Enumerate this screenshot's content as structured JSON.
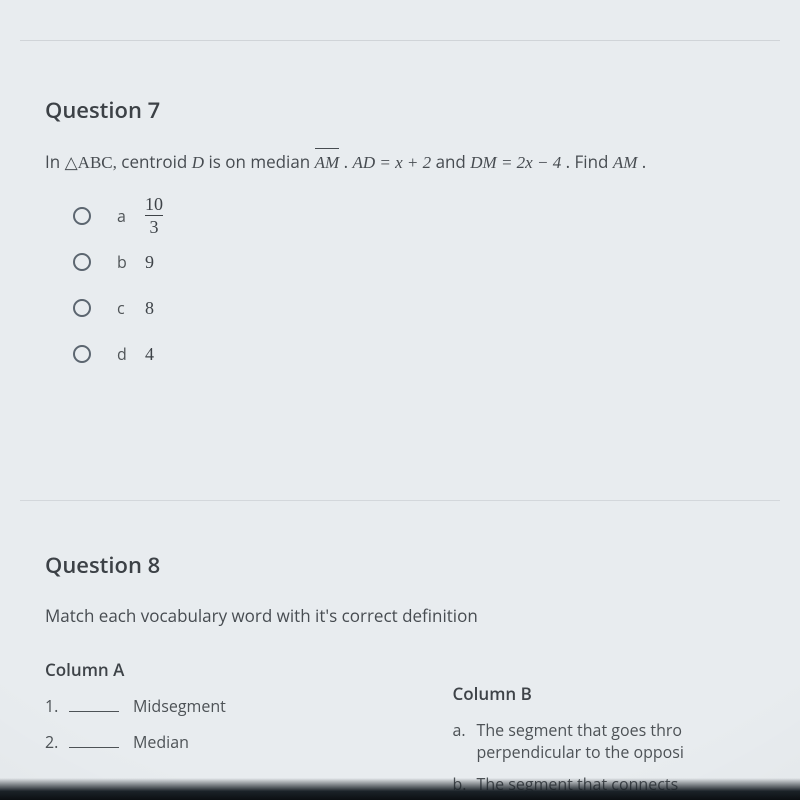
{
  "colors": {
    "page_bg": "#e8ecef",
    "text_primary": "#3c4146",
    "text_body": "#474c51",
    "divider": "#d0d4d8",
    "radio_border": "#5c6670"
  },
  "q7": {
    "title": "Question 7",
    "stem_pre": "In ",
    "triangle": "△ABC,",
    "stem_mid1": " centroid ",
    "centroid_var": "D",
    "stem_mid2": " is on median ",
    "median_seg": "AM",
    "stem_mid3": ". ",
    "eq1": "AD = x + 2",
    "stem_mid4": " and ",
    "eq2": "DM = 2x − 4",
    "stem_end": ". Find ",
    "find_seg": "AM",
    "stem_period": ".",
    "choices": [
      {
        "letter": "a",
        "is_fraction": true,
        "num": "10",
        "den": "3"
      },
      {
        "letter": "b",
        "is_fraction": false,
        "value": "9"
      },
      {
        "letter": "c",
        "is_fraction": false,
        "value": "8"
      },
      {
        "letter": "d",
        "is_fraction": false,
        "value": "4"
      }
    ]
  },
  "q8": {
    "title": "Question 8",
    "stem": "Match each vocabulary word with it's correct definition",
    "colA_head": "Column A",
    "colB_head": "Column B",
    "colA": [
      {
        "n": "1.",
        "term": "Midsegment"
      },
      {
        "n": "2.",
        "term": "Median"
      }
    ],
    "colB": [
      {
        "letter": "a.",
        "def_line1": "The segment that goes thro",
        "def_line2": "perpendicular to the opposi"
      },
      {
        "letter": "b.",
        "def_line1": "The segment that connects "
      }
    ]
  }
}
